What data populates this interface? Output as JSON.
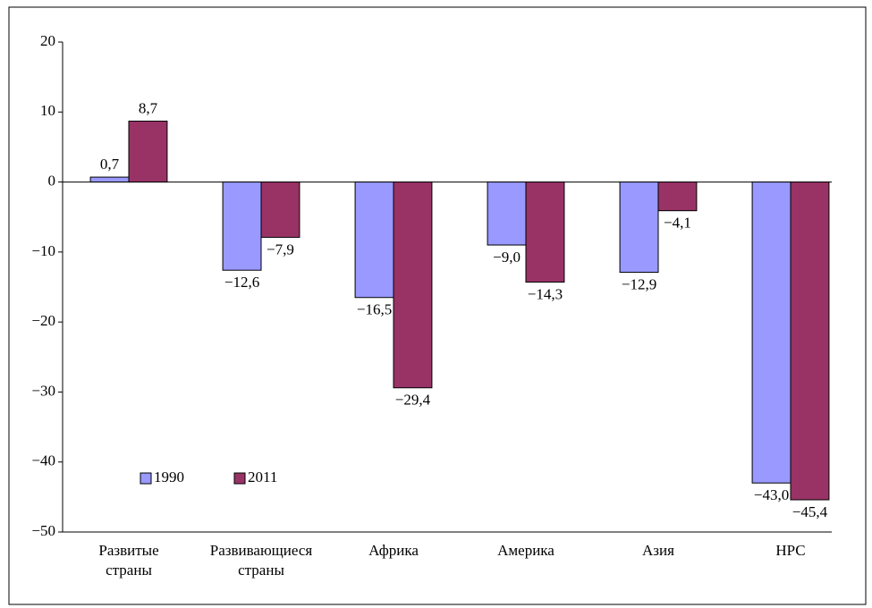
{
  "chart_data": {
    "type": "bar",
    "categories": [
      "Развитые страны",
      "Развивающиеся страны",
      "Африка",
      "Америка",
      "Азия",
      "НРС"
    ],
    "series": [
      {
        "name": "1990",
        "color": "#9999ff",
        "values": [
          0.7,
          -12.6,
          -16.5,
          -9.0,
          -12.9,
          -43.0
        ],
        "value_labels": [
          "0,7",
          "−12,6",
          "−16,5",
          "−9,0",
          "−12,9",
          "−43,0"
        ]
      },
      {
        "name": "2011",
        "color": "#993366",
        "values": [
          8.7,
          -7.9,
          -29.4,
          -14.3,
          -4.1,
          -45.4
        ],
        "value_labels": [
          "8,7",
          "−7,9",
          "−29,4",
          "−14,3",
          "−4,1",
          "−45,4"
        ]
      }
    ],
    "ylim": [
      -50,
      20
    ],
    "yticks": [
      {
        "value": -50,
        "label": "−50"
      },
      {
        "value": -40,
        "label": "−40"
      },
      {
        "value": -30,
        "label": "−30"
      },
      {
        "value": -20,
        "label": "−20"
      },
      {
        "value": -10,
        "label": "−10"
      },
      0,
      10,
      20
    ],
    "grid": false,
    "legend": "lower left"
  }
}
